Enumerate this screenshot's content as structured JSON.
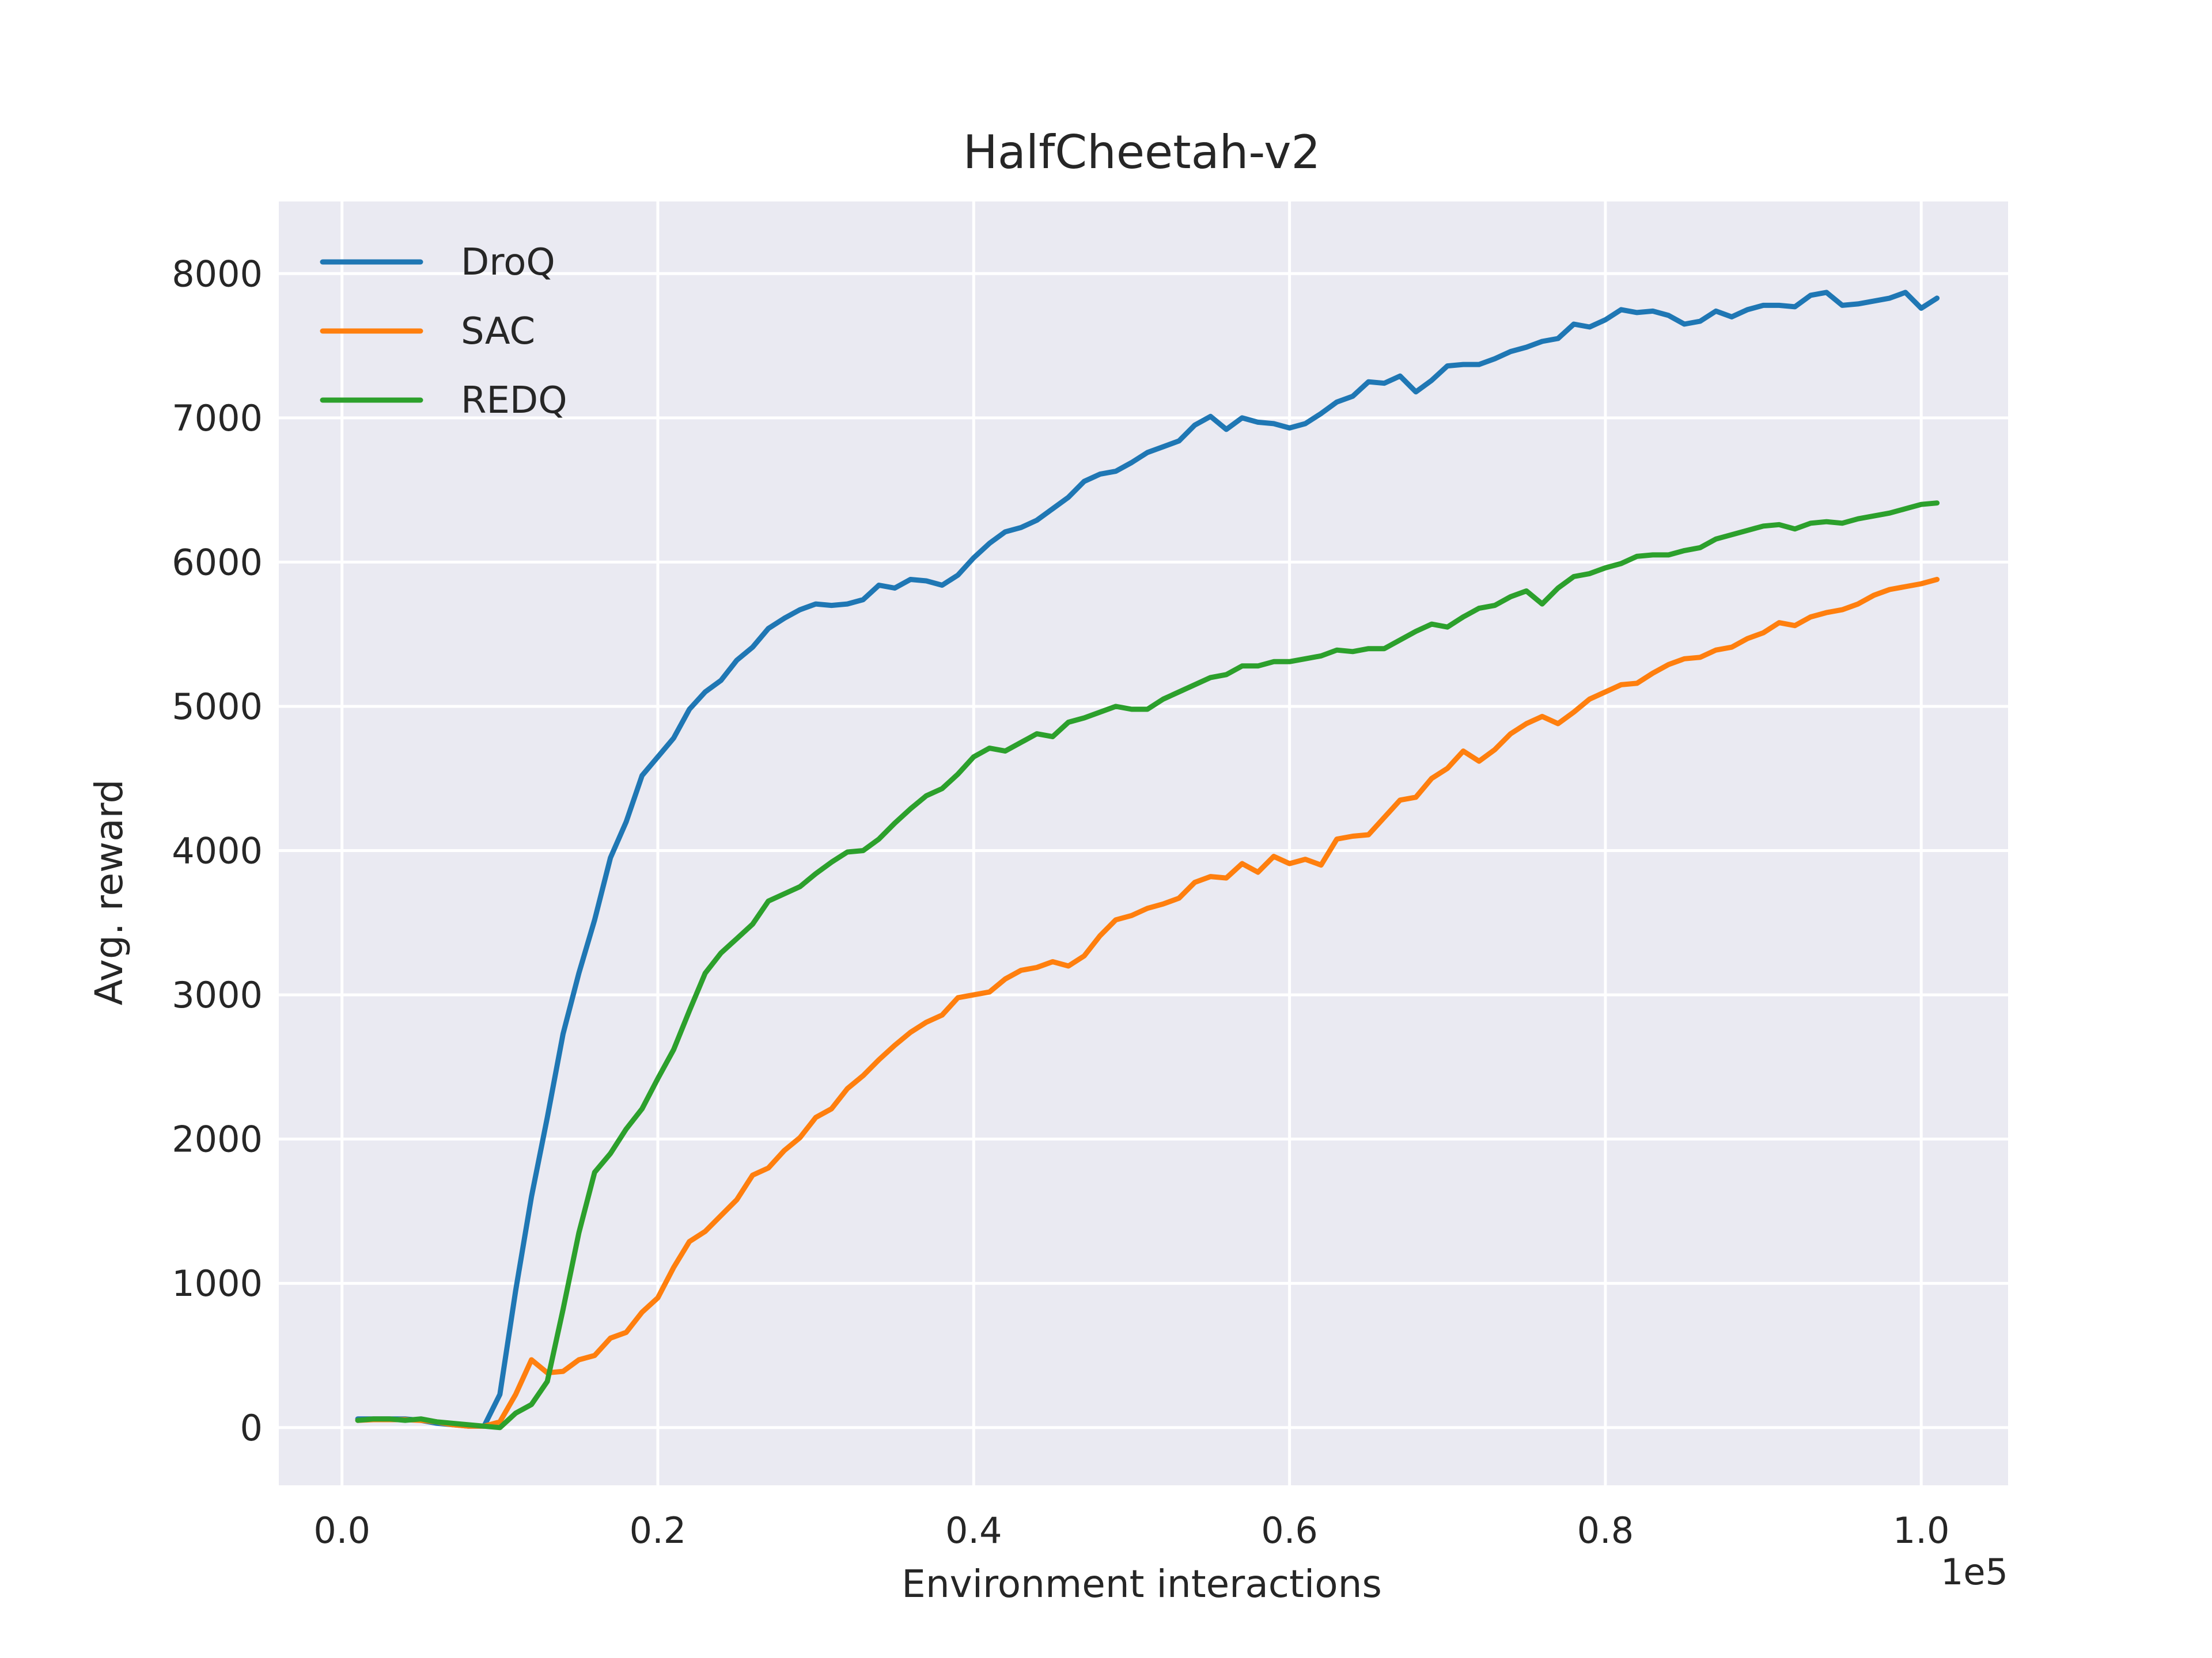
{
  "chart_data": {
    "type": "line",
    "title": "HalfCheetah-v2",
    "xlabel": "Environment interactions",
    "ylabel": "Avg. reward",
    "x_offset_label": "1e5",
    "xlim": [
      -0.04,
      1.055
    ],
    "ylim": [
      -400,
      8500
    ],
    "x_ticks": [
      0.0,
      0.2,
      0.4,
      0.6,
      0.8,
      1.0
    ],
    "x_tick_labels": [
      "0.0",
      "0.2",
      "0.4",
      "0.6",
      "0.8",
      "1.0"
    ],
    "y_ticks": [
      0,
      1000,
      2000,
      3000,
      4000,
      5000,
      6000,
      7000,
      8000
    ],
    "y_tick_labels": [
      "0",
      "1000",
      "2000",
      "3000",
      "4000",
      "5000",
      "6000",
      "7000",
      "8000"
    ],
    "grid": true,
    "legend_position": "top-left",
    "background_color": "#eaeaf2",
    "series": [
      {
        "name": "DroQ",
        "color": "#1f77b4",
        "x": [
          0.01,
          0.02,
          0.03,
          0.04,
          0.05,
          0.06,
          0.07,
          0.08,
          0.09,
          0.1,
          0.11,
          0.12,
          0.13,
          0.14,
          0.15,
          0.16,
          0.17,
          0.18,
          0.19,
          0.2,
          0.21,
          0.22,
          0.23,
          0.24,
          0.25,
          0.26,
          0.27,
          0.28,
          0.29,
          0.3,
          0.31,
          0.32,
          0.33,
          0.34,
          0.35,
          0.36,
          0.37,
          0.38,
          0.39,
          0.4,
          0.41,
          0.42,
          0.43,
          0.44,
          0.45,
          0.46,
          0.47,
          0.48,
          0.49,
          0.5,
          0.51,
          0.52,
          0.53,
          0.54,
          0.55,
          0.56,
          0.57,
          0.58,
          0.59,
          0.6,
          0.61,
          0.62,
          0.63,
          0.64,
          0.65,
          0.66,
          0.67,
          0.68,
          0.69,
          0.7,
          0.71,
          0.72,
          0.73,
          0.74,
          0.75,
          0.76,
          0.77,
          0.78,
          0.79,
          0.8,
          0.81,
          0.82,
          0.83,
          0.84,
          0.85,
          0.86,
          0.87,
          0.88,
          0.89,
          0.9,
          0.91,
          0.92,
          0.93,
          0.94,
          0.95,
          0.96,
          0.97,
          0.98,
          0.99,
          1.0,
          1.01
        ],
        "y": [
          60,
          60,
          60,
          60,
          50,
          30,
          20,
          10,
          10,
          230,
          950,
          1600,
          2150,
          2730,
          3150,
          3520,
          3950,
          4200,
          4520,
          4650,
          4780,
          4980,
          5100,
          5180,
          5320,
          5410,
          5540,
          5610,
          5670,
          5710,
          5700,
          5710,
          5740,
          5840,
          5820,
          5880,
          5870,
          5840,
          5910,
          6030,
          6130,
          6210,
          6240,
          6290,
          6370,
          6450,
          6560,
          6610,
          6630,
          6690,
          6760,
          6800,
          6840,
          6950,
          7010,
          6920,
          7000,
          6970,
          6960,
          6930,
          6960,
          7030,
          7110,
          7150,
          7250,
          7240,
          7290,
          7180,
          7260,
          7360,
          7370,
          7370,
          7410,
          7460,
          7490,
          7530,
          7550,
          7650,
          7630,
          7680,
          7750,
          7730,
          7740,
          7710,
          7650,
          7670,
          7740,
          7700,
          7750,
          7780,
          7780,
          7770,
          7850,
          7870,
          7780,
          7790,
          7810,
          7830,
          7870,
          7760,
          7830
        ]
      },
      {
        "name": "SAC",
        "color": "#ff7f0e",
        "x": [
          0.01,
          0.02,
          0.03,
          0.04,
          0.05,
          0.06,
          0.07,
          0.08,
          0.09,
          0.1,
          0.11,
          0.12,
          0.13,
          0.14,
          0.15,
          0.16,
          0.17,
          0.18,
          0.19,
          0.2,
          0.21,
          0.22,
          0.23,
          0.24,
          0.25,
          0.26,
          0.27,
          0.28,
          0.29,
          0.3,
          0.31,
          0.32,
          0.33,
          0.34,
          0.35,
          0.36,
          0.37,
          0.38,
          0.39,
          0.4,
          0.41,
          0.42,
          0.43,
          0.44,
          0.45,
          0.46,
          0.47,
          0.48,
          0.49,
          0.5,
          0.51,
          0.52,
          0.53,
          0.54,
          0.55,
          0.56,
          0.57,
          0.58,
          0.59,
          0.6,
          0.61,
          0.62,
          0.63,
          0.64,
          0.65,
          0.66,
          0.67,
          0.68,
          0.69,
          0.7,
          0.71,
          0.72,
          0.73,
          0.74,
          0.75,
          0.76,
          0.77,
          0.78,
          0.79,
          0.8,
          0.81,
          0.82,
          0.83,
          0.84,
          0.85,
          0.86,
          0.87,
          0.88,
          0.89,
          0.9,
          0.91,
          0.92,
          0.93,
          0.94,
          0.95,
          0.96,
          0.97,
          0.98,
          0.99,
          1.0,
          1.01
        ],
        "y": [
          50,
          55,
          55,
          55,
          50,
          40,
          20,
          10,
          10,
          40,
          230,
          470,
          380,
          390,
          470,
          500,
          620,
          660,
          800,
          900,
          1110,
          1290,
          1360,
          1470,
          1580,
          1750,
          1800,
          1920,
          2010,
          2150,
          2210,
          2350,
          2440,
          2550,
          2650,
          2740,
          2810,
          2860,
          2980,
          3000,
          3020,
          3110,
          3170,
          3190,
          3230,
          3200,
          3270,
          3410,
          3520,
          3550,
          3600,
          3630,
          3670,
          3780,
          3820,
          3810,
          3910,
          3850,
          3960,
          3910,
          3940,
          3900,
          4080,
          4100,
          4110,
          4230,
          4350,
          4370,
          4500,
          4570,
          4690,
          4620,
          4700,
          4810,
          4880,
          4930,
          4880,
          4960,
          5050,
          5100,
          5150,
          5160,
          5230,
          5290,
          5330,
          5340,
          5390,
          5410,
          5470,
          5510,
          5580,
          5560,
          5620,
          5650,
          5670,
          5710,
          5770,
          5810,
          5830,
          5850,
          5880
        ]
      },
      {
        "name": "REDQ",
        "color": "#2ca02c",
        "x": [
          0.01,
          0.02,
          0.03,
          0.04,
          0.05,
          0.06,
          0.07,
          0.08,
          0.09,
          0.1,
          0.11,
          0.12,
          0.13,
          0.14,
          0.15,
          0.16,
          0.17,
          0.18,
          0.19,
          0.2,
          0.21,
          0.22,
          0.23,
          0.24,
          0.25,
          0.26,
          0.27,
          0.28,
          0.29,
          0.3,
          0.31,
          0.32,
          0.33,
          0.34,
          0.35,
          0.36,
          0.37,
          0.38,
          0.39,
          0.4,
          0.41,
          0.42,
          0.43,
          0.44,
          0.45,
          0.46,
          0.47,
          0.48,
          0.49,
          0.5,
          0.51,
          0.52,
          0.53,
          0.54,
          0.55,
          0.56,
          0.57,
          0.58,
          0.59,
          0.6,
          0.61,
          0.62,
          0.63,
          0.64,
          0.65,
          0.66,
          0.67,
          0.68,
          0.69,
          0.7,
          0.71,
          0.72,
          0.73,
          0.74,
          0.75,
          0.76,
          0.77,
          0.78,
          0.79,
          0.8,
          0.81,
          0.82,
          0.83,
          0.84,
          0.85,
          0.86,
          0.87,
          0.88,
          0.89,
          0.9,
          0.91,
          0.92,
          0.93,
          0.94,
          0.95,
          0.96,
          0.97,
          0.98,
          0.99,
          1.0,
          1.01
        ],
        "y": [
          50,
          60,
          60,
          50,
          60,
          40,
          30,
          20,
          10,
          0,
          100,
          160,
          320,
          820,
          1350,
          1770,
          1900,
          2070,
          2210,
          2420,
          2620,
          2890,
          3150,
          3290,
          3390,
          3490,
          3650,
          3700,
          3750,
          3840,
          3920,
          3990,
          4000,
          4080,
          4190,
          4290,
          4380,
          4430,
          4530,
          4650,
          4710,
          4690,
          4750,
          4810,
          4790,
          4890,
          4920,
          4960,
          5000,
          4980,
          4980,
          5050,
          5100,
          5150,
          5200,
          5220,
          5280,
          5280,
          5310,
          5310,
          5330,
          5350,
          5390,
          5380,
          5400,
          5400,
          5460,
          5520,
          5570,
          5550,
          5620,
          5680,
          5700,
          5760,
          5800,
          5710,
          5820,
          5900,
          5920,
          5960,
          5990,
          6040,
          6050,
          6050,
          6080,
          6100,
          6160,
          6190,
          6220,
          6250,
          6260,
          6230,
          6270,
          6280,
          6270,
          6300,
          6320,
          6340,
          6370,
          6400,
          6410
        ]
      }
    ]
  }
}
